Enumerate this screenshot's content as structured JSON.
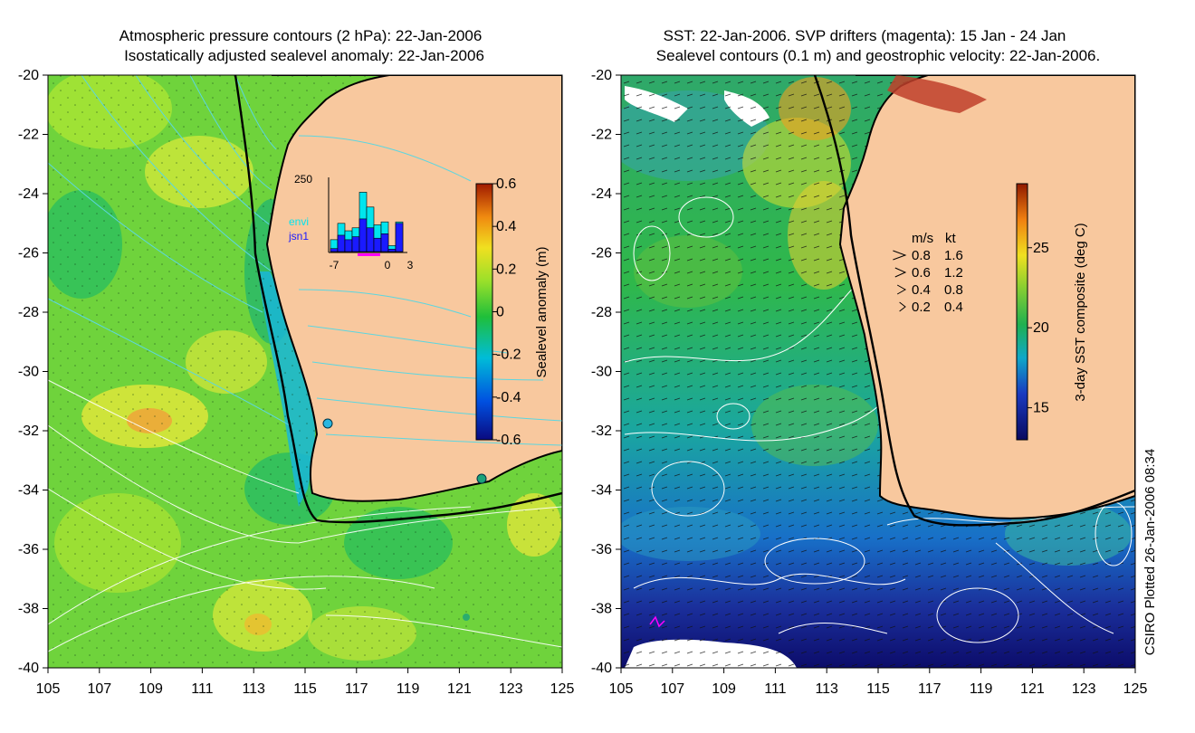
{
  "left_panel": {
    "title_line1": "Atmospheric pressure contours (2 hPa): 22-Jan-2006",
    "title_line2": "Isostatically adjusted sealevel anomaly: 22-Jan-2006",
    "colorbar": {
      "label": "Sealevel anomaly (m)",
      "ticks": [
        "0.6",
        "0.4",
        "0.2",
        "0",
        "-0.2",
        "-0.4",
        "-0.6"
      ],
      "range": [
        -0.6,
        0.6
      ]
    },
    "inset_histogram": {
      "top_label": "250",
      "legend": [
        {
          "name": "envi",
          "color": "#00e5ee"
        },
        {
          "name": "jsn1",
          "color": "#1a1aff"
        }
      ],
      "x_ticks": [
        "-7",
        "0",
        "3"
      ],
      "bars": [
        {
          "day": -7,
          "envi": 40,
          "jsn1": 10
        },
        {
          "day": -6,
          "envi": 95,
          "jsn1": 55
        },
        {
          "day": -5,
          "envi": 70,
          "jsn1": 40
        },
        {
          "day": -4,
          "envi": 80,
          "jsn1": 50
        },
        {
          "day": -3,
          "envi": 200,
          "jsn1": 110
        },
        {
          "day": -2,
          "envi": 150,
          "jsn1": 80
        },
        {
          "day": -1,
          "envi": 90,
          "jsn1": 45
        },
        {
          "day": 0,
          "envi": 100,
          "jsn1": 60
        },
        {
          "day": 1,
          "envi": 20,
          "jsn1": 8
        },
        {
          "day": 2,
          "envi": 100,
          "jsn1": 95
        }
      ],
      "y_max": 250
    }
  },
  "right_panel": {
    "title_line1": "SST: 22-Jan-2006. SVP drifters (magenta): 15 Jan - 24 Jan",
    "title_line2": "Sealevel contours (0.1 m) and geostrophic velocity: 22-Jan-2006.",
    "colorbar": {
      "label": "3-day SST composite (deg C)",
      "ticks": [
        "25",
        "20",
        "15"
      ],
      "range": [
        13,
        29
      ]
    },
    "velocity_legend": {
      "header_ms": "m/s",
      "header_kt": "kt",
      "rows": [
        {
          "ms": "0.8",
          "kt": "1.6"
        },
        {
          "ms": "0.6",
          "kt": "1.2"
        },
        {
          "ms": "0.4",
          "kt": "0.8"
        },
        {
          "ms": "0.2",
          "kt": "0.4"
        }
      ]
    }
  },
  "axes": {
    "lat_ticks": [
      "-20",
      "-22",
      "-24",
      "-26",
      "-28",
      "-30",
      "-32",
      "-34",
      "-36",
      "-38",
      "-40"
    ],
    "lon_ticks": [
      "105",
      "107",
      "109",
      "111",
      "113",
      "115",
      "117",
      "119",
      "121",
      "123",
      "125"
    ]
  },
  "credit": "CSIRO Plotted 26-Jan-2006 08:34",
  "colors": {
    "land": "#f8c89e",
    "coast": "#000000",
    "pressure_contour": "#5cd6e0",
    "sealevel_contour": "#ffffff",
    "drifter": "#ff00ff"
  }
}
